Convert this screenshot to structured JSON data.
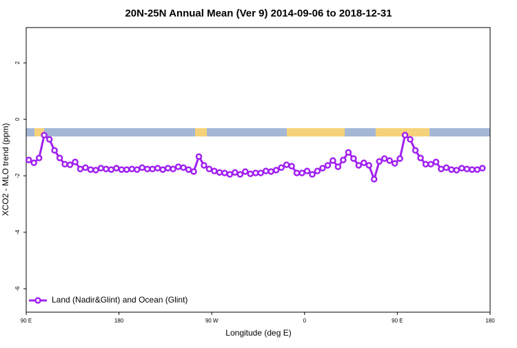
{
  "chart_data": {
    "type": "line",
    "title": "20N-25N Annual Mean (Ver 9)   2014-09-06 to 2018-12-31",
    "x_label": "Longitude (deg E)",
    "y_label": "XCO2 - MLO trend (ppm)",
    "x": [
      92.5,
      97.5,
      102.5,
      107.5,
      112.5,
      117.5,
      122.5,
      127.5,
      132.5,
      137.5,
      142.5,
      147.5,
      152.5,
      157.5,
      162.5,
      167.5,
      172.5,
      177.5,
      182.5,
      187.5,
      192.5,
      197.5,
      202.5,
      207.5,
      212.5,
      217.5,
      222.5,
      227.5,
      232.5,
      237.5,
      242.5,
      247.5,
      252.5,
      257.5,
      262.5,
      267.5,
      272.5,
      277.5,
      282.5,
      287.5,
      292.5,
      297.5,
      302.5,
      307.5,
      312.5,
      317.5,
      322.5,
      327.5,
      332.5,
      337.5,
      342.5,
      347.5,
      352.5,
      357.5,
      362.5,
      367.5,
      372.5,
      377.5,
      382.5,
      387.5,
      392.5,
      397.5,
      402.5,
      407.5,
      412.5,
      417.5,
      422.5,
      427.5,
      432.5,
      437.5,
      442.5,
      447.5,
      452.5,
      457.5,
      462.5,
      467.5,
      472.5,
      477.5,
      482.5,
      487.5,
      492.5,
      497.5,
      502.5,
      507.5,
      512.5,
      517.5,
      522.5,
      527.5,
      532.5
    ],
    "series": [
      {
        "name": "Land (Nadir&Glint) and Ocean (Glint)",
        "color": "#a020f0",
        "values": [
          -1.44,
          -1.54,
          -1.37,
          -0.56,
          -0.71,
          -1.1,
          -1.37,
          -1.59,
          -1.61,
          -1.51,
          -1.76,
          -1.71,
          -1.78,
          -1.8,
          -1.73,
          -1.76,
          -1.78,
          -1.73,
          -1.78,
          -1.78,
          -1.76,
          -1.78,
          -1.71,
          -1.76,
          -1.76,
          -1.73,
          -1.78,
          -1.73,
          -1.76,
          -1.68,
          -1.71,
          -1.78,
          -1.85,
          -1.32,
          -1.63,
          -1.76,
          -1.83,
          -1.88,
          -1.9,
          -1.95,
          -1.88,
          -1.95,
          -1.85,
          -1.93,
          -1.9,
          -1.9,
          -1.83,
          -1.85,
          -1.8,
          -1.71,
          -1.61,
          -1.66,
          -1.9,
          -1.9,
          -1.83,
          -1.95,
          -1.83,
          -1.73,
          -1.63,
          -1.46,
          -1.68,
          -1.44,
          -1.17,
          -1.39,
          -1.63,
          -1.54,
          -1.63,
          -2.12,
          -1.49,
          -1.39,
          -1.46,
          -1.56,
          -1.39,
          -0.56,
          -0.71,
          -1.1,
          -1.37,
          -1.59,
          -1.59,
          -1.51,
          -1.76,
          -1.71,
          -1.78,
          -1.8,
          -1.73,
          -1.76,
          -1.78,
          -1.78,
          -1.73
        ]
      }
    ],
    "xlim": [
      90,
      540
    ],
    "xticks": [
      {
        "value": 90,
        "label": "90 E"
      },
      {
        "value": 180,
        "label": "180"
      },
      {
        "value": 270,
        "label": "90 W"
      },
      {
        "value": 360,
        "label": "0"
      },
      {
        "value": 450,
        "label": "90 E"
      },
      {
        "value": 540,
        "label": "180"
      }
    ],
    "ylim": [
      -6.83,
      3.25
    ],
    "yticks": [
      2,
      0,
      -2,
      -4,
      -6
    ],
    "legend": "bottom left"
  }
}
